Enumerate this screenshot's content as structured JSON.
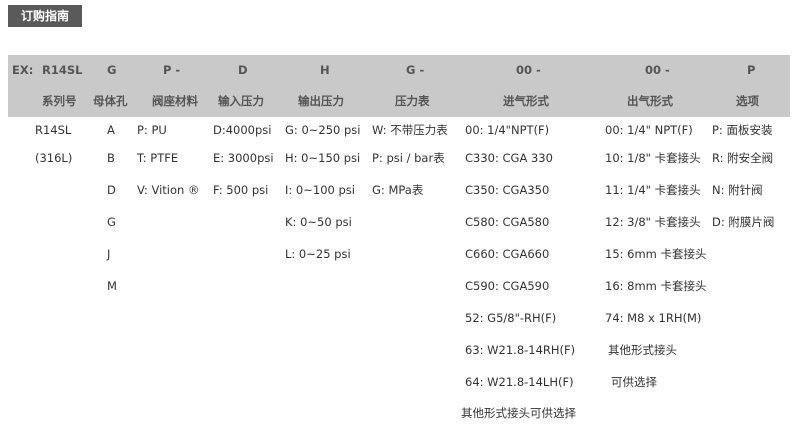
{
  "title": "订购指南",
  "header": {
    "prefix": "EX:"
  },
  "columns": [
    {
      "code": "R14SL",
      "label": "系列号",
      "items": [
        "R14SL",
        "(316L)"
      ]
    },
    {
      "code": "G",
      "label": "母体孔",
      "items": [
        "A",
        "B",
        "D",
        "G",
        "J",
        "M"
      ]
    },
    {
      "code": "P -",
      "label": "阀座材料",
      "items": [
        "P: PU",
        "T: PTFE",
        "V: Vition ®"
      ]
    },
    {
      "code": "D",
      "label": "输入压力",
      "items": [
        "D:4000psi",
        "E: 3000psi",
        "F: 500 psi"
      ]
    },
    {
      "code": "H",
      "label": "输出压力",
      "items": [
        "G: 0~250 psi",
        "H: 0~150 psi",
        "I: 0~100 psi",
        "K: 0~50 psi",
        "L: 0~25 psi"
      ]
    },
    {
      "code": "G -",
      "label": "压力表",
      "items": [
        "W: 不带压力表",
        "P: psi / bar表",
        "G: MPa表"
      ]
    },
    {
      "code": "00 -",
      "label": "进气形式",
      "items": [
        "00: 1/4\"NPT(F)",
        "C330: CGA 330",
        "C350: CGA350",
        "C580: CGA580",
        "C660: CGA660",
        "C590: CGA590",
        "52: G5/8\"-RH(F)",
        "63: W21.8-14RH(F)",
        "64: W21.8-14LH(F)",
        "其他形式接头可供选择"
      ]
    },
    {
      "code": "00 -",
      "label": "出气形式",
      "items": [
        "00: 1/4\" NPT(F)",
        "10: 1/8\" 卡套接头",
        "11: 1/4\" 卡套接头",
        "12: 3/8\" 卡套接头",
        "15: 6mm 卡套接头",
        "16: 8mm 卡套接头",
        "74: M8 x 1RH(M)",
        "其他形式接头",
        "可供选择"
      ]
    },
    {
      "code": "P",
      "label": "选项",
      "items": [
        "P: 面板安装",
        "R: 附安全阀",
        "N: 附针阀",
        "D: 附膜片阀"
      ]
    }
  ]
}
